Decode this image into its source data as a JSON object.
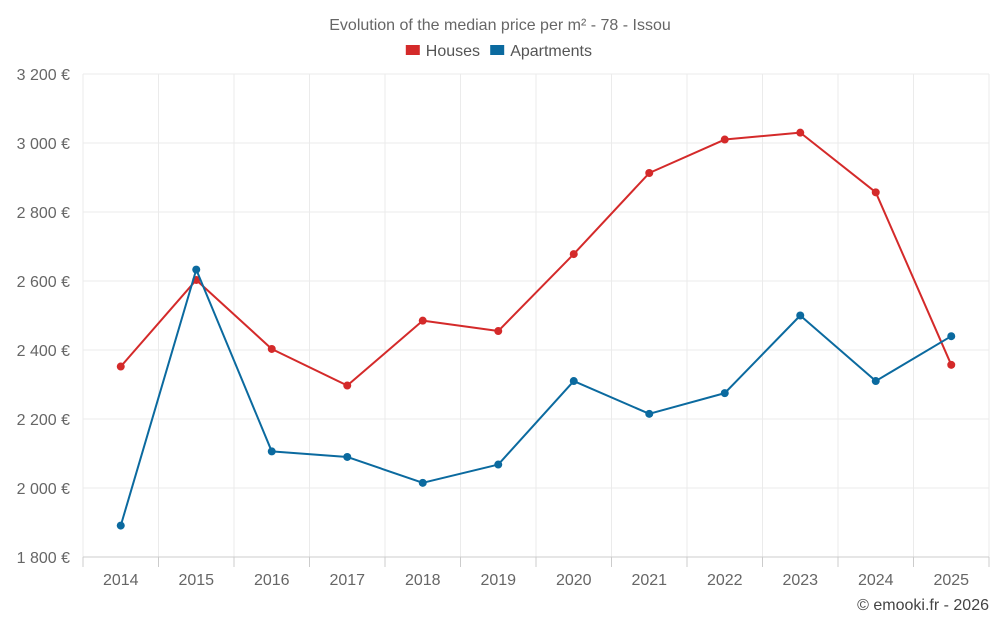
{
  "chart_data": {
    "type": "line",
    "title": "Evolution of the median price per m² - 78 - Issou",
    "categories": [
      "2014",
      "2015",
      "2016",
      "2017",
      "2018",
      "2019",
      "2020",
      "2021",
      "2022",
      "2023",
      "2024",
      "2025"
    ],
    "series": [
      {
        "name": "Houses",
        "color": "#d42a2a",
        "values": [
          2352,
          2603,
          2403,
          2297,
          2485,
          2455,
          2678,
          2913,
          3010,
          3030,
          2857,
          2357
        ]
      },
      {
        "name": "Apartments",
        "color": "#0b6a9f",
        "values": [
          1891,
          2633,
          2106,
          2090,
          2015,
          2068,
          2310,
          2215,
          2275,
          2500,
          2310,
          2440
        ]
      }
    ],
    "ylim": [
      1800,
      3200
    ],
    "yticks": [
      1800,
      2000,
      2200,
      2400,
      2600,
      2800,
      3000,
      3200
    ],
    "ytick_labels": [
      "1 800 €",
      "2 000 €",
      "2 200 €",
      "2 400 €",
      "2 600 €",
      "2 800 €",
      "3 000 €",
      "3 200 €"
    ],
    "xlabel": "",
    "ylabel": "",
    "grid": true,
    "legend_position": "top-center"
  },
  "credit": "© emooki.fr - 2026"
}
